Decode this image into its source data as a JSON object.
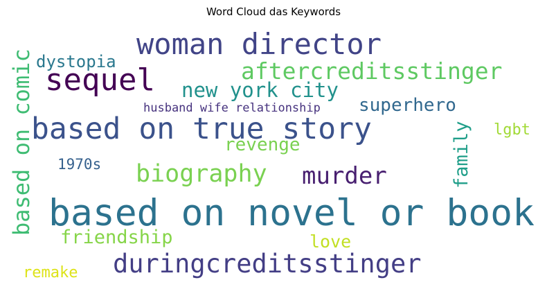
{
  "chart_data": {
    "type": "wordcloud",
    "title": "Word Cloud das Keywords",
    "background": "#ffffff",
    "colormap": "viridis",
    "words": [
      {
        "text": "based on novel or book",
        "color": "#2c728e"
      },
      {
        "text": "based on true story",
        "color": "#3b528b"
      },
      {
        "text": "woman director",
        "color": "#414487"
      },
      {
        "text": "duringcreditsstinger",
        "color": "#433e85"
      },
      {
        "text": "sequel",
        "color": "#440154"
      },
      {
        "text": "biography",
        "color": "#7ad151"
      },
      {
        "text": "murder",
        "color": "#481f70"
      },
      {
        "text": "aftercreditsstinger",
        "color": "#5ec962"
      },
      {
        "text": "based on comic",
        "color": "#3fbc73"
      },
      {
        "text": "new york city",
        "color": "#21918c"
      },
      {
        "text": "superhero",
        "color": "#31688e"
      },
      {
        "text": "family",
        "color": "#1f9e89"
      },
      {
        "text": "revenge",
        "color": "#7ad151"
      },
      {
        "text": "friendship",
        "color": "#86d549"
      },
      {
        "text": "dystopia",
        "color": "#2a788e"
      },
      {
        "text": "love",
        "color": "#c2df23"
      },
      {
        "text": "remake",
        "color": "#dde318"
      },
      {
        "text": "lgbt",
        "color": "#a2da37"
      },
      {
        "text": "1970s",
        "color": "#35608d"
      },
      {
        "text": "husband wife relationship",
        "color": "#46327e"
      }
    ]
  }
}
